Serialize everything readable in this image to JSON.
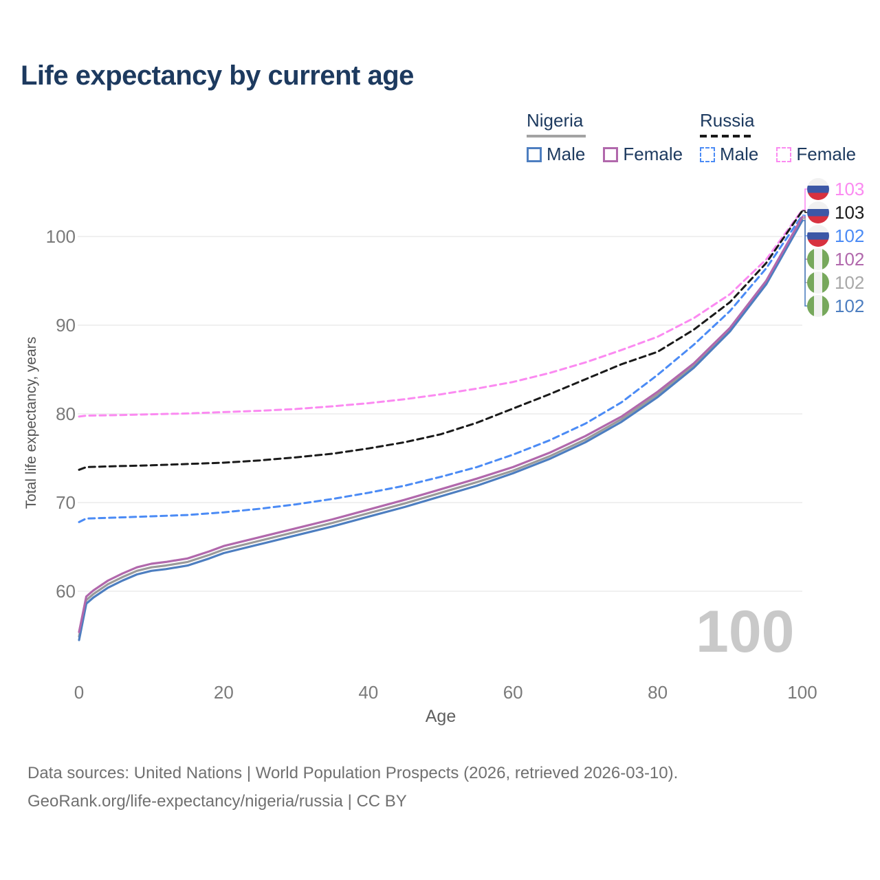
{
  "title": "Life expectancy by current age",
  "legend": {
    "groups": [
      {
        "name": "Nigeria",
        "line_style": "solid",
        "line_color": "#a3a3a3",
        "items": [
          {
            "label": "Male",
            "color": "#4d7ec0",
            "dashed": false
          },
          {
            "label": "Female",
            "color": "#b168ac",
            "dashed": false
          }
        ]
      },
      {
        "name": "Russia",
        "line_style": "dashed",
        "line_color": "#1a1a1a",
        "items": [
          {
            "label": "Male",
            "color": "#4b8bf5",
            "dashed": true
          },
          {
            "label": "Female",
            "color": "#fb8af1",
            "dashed": true
          }
        ]
      }
    ]
  },
  "chart_data": {
    "type": "line",
    "title": "Life expectancy by current age",
    "xlabel": "Age",
    "ylabel": "Total life expectancy, years",
    "xlim": [
      0,
      100
    ],
    "ylim": [
      54,
      104
    ],
    "xticks": [
      0,
      20,
      40,
      60,
      80,
      100
    ],
    "yticks": [
      60,
      70,
      80,
      90,
      100
    ],
    "grid": "horizontal",
    "legend_position": "top-right",
    "series": [
      {
        "id": "russia-female",
        "name": "Russia Female",
        "color": "#fb8af1",
        "dashed": true,
        "points": [
          [
            0,
            79.7
          ],
          [
            1,
            79.8
          ],
          [
            5,
            79.85
          ],
          [
            10,
            79.95
          ],
          [
            15,
            80.05
          ],
          [
            20,
            80.2
          ],
          [
            25,
            80.35
          ],
          [
            30,
            80.55
          ],
          [
            35,
            80.85
          ],
          [
            40,
            81.2
          ],
          [
            45,
            81.65
          ],
          [
            50,
            82.2
          ],
          [
            55,
            82.85
          ],
          [
            60,
            83.6
          ],
          [
            65,
            84.6
          ],
          [
            70,
            85.8
          ],
          [
            75,
            87.2
          ],
          [
            80,
            88.7
          ],
          [
            85,
            90.8
          ],
          [
            90,
            93.5
          ],
          [
            95,
            97.4
          ],
          [
            100,
            103.0
          ]
        ]
      },
      {
        "id": "russia-total",
        "name": "Russia Total",
        "color": "#1a1a1a",
        "dashed": true,
        "points": [
          [
            0,
            73.7
          ],
          [
            1,
            74.0
          ],
          [
            5,
            74.1
          ],
          [
            10,
            74.2
          ],
          [
            15,
            74.35
          ],
          [
            20,
            74.5
          ],
          [
            25,
            74.75
          ],
          [
            30,
            75.1
          ],
          [
            35,
            75.5
          ],
          [
            40,
            76.1
          ],
          [
            45,
            76.8
          ],
          [
            50,
            77.7
          ],
          [
            55,
            79.0
          ],
          [
            60,
            80.6
          ],
          [
            65,
            82.2
          ],
          [
            70,
            83.9
          ],
          [
            75,
            85.6
          ],
          [
            80,
            87.0
          ],
          [
            85,
            89.5
          ],
          [
            90,
            92.6
          ],
          [
            95,
            97.0
          ],
          [
            100,
            102.9
          ]
        ]
      },
      {
        "id": "russia-male",
        "name": "Russia Male",
        "color": "#4b8bf5",
        "dashed": true,
        "points": [
          [
            0,
            67.8
          ],
          [
            1,
            68.2
          ],
          [
            5,
            68.3
          ],
          [
            10,
            68.45
          ],
          [
            15,
            68.6
          ],
          [
            20,
            68.9
          ],
          [
            25,
            69.3
          ],
          [
            30,
            69.8
          ],
          [
            35,
            70.4
          ],
          [
            40,
            71.1
          ],
          [
            45,
            71.9
          ],
          [
            50,
            72.9
          ],
          [
            55,
            74.0
          ],
          [
            60,
            75.4
          ],
          [
            65,
            77.0
          ],
          [
            70,
            78.9
          ],
          [
            75,
            81.3
          ],
          [
            80,
            84.4
          ],
          [
            85,
            87.8
          ],
          [
            90,
            91.6
          ],
          [
            95,
            96.4
          ],
          [
            100,
            102.4
          ]
        ]
      },
      {
        "id": "nigeria-total",
        "name": "Nigeria Total",
        "color": "#9a9a9a",
        "dashed": false,
        "points": [
          [
            0,
            54.9
          ],
          [
            1,
            59.0
          ],
          [
            2,
            59.7
          ],
          [
            4,
            60.8
          ],
          [
            6,
            61.6
          ],
          [
            8,
            62.3
          ],
          [
            10,
            62.7
          ],
          [
            12,
            62.9
          ],
          [
            15,
            63.3
          ],
          [
            18,
            64.1
          ],
          [
            20,
            64.7
          ],
          [
            25,
            65.7
          ],
          [
            30,
            66.7
          ],
          [
            35,
            67.7
          ],
          [
            40,
            68.8
          ],
          [
            45,
            69.9
          ],
          [
            50,
            71.1
          ],
          [
            55,
            72.3
          ],
          [
            60,
            73.6
          ],
          [
            65,
            75.2
          ],
          [
            70,
            77.1
          ],
          [
            75,
            79.4
          ],
          [
            80,
            82.2
          ],
          [
            85,
            85.5
          ],
          [
            90,
            89.5
          ],
          [
            95,
            94.8
          ],
          [
            100,
            102.0
          ]
        ]
      },
      {
        "id": "nigeria-male",
        "name": "Nigeria Male",
        "color": "#4d7ec0",
        "dashed": false,
        "points": [
          [
            0,
            54.5
          ],
          [
            1,
            58.6
          ],
          [
            2,
            59.3
          ],
          [
            4,
            60.4
          ],
          [
            6,
            61.2
          ],
          [
            8,
            61.9
          ],
          [
            10,
            62.3
          ],
          [
            12,
            62.5
          ],
          [
            15,
            62.9
          ],
          [
            18,
            63.7
          ],
          [
            20,
            64.3
          ],
          [
            25,
            65.3
          ],
          [
            30,
            66.3
          ],
          [
            35,
            67.3
          ],
          [
            40,
            68.4
          ],
          [
            45,
            69.5
          ],
          [
            50,
            70.7
          ],
          [
            55,
            71.9
          ],
          [
            60,
            73.3
          ],
          [
            65,
            74.9
          ],
          [
            70,
            76.8
          ],
          [
            75,
            79.1
          ],
          [
            80,
            81.9
          ],
          [
            85,
            85.2
          ],
          [
            90,
            89.3
          ],
          [
            95,
            94.6
          ],
          [
            100,
            101.8
          ]
        ]
      },
      {
        "id": "nigeria-female",
        "name": "Nigeria Female",
        "color": "#b168ac",
        "dashed": false,
        "points": [
          [
            0,
            55.4
          ],
          [
            1,
            59.4
          ],
          [
            2,
            60.1
          ],
          [
            4,
            61.2
          ],
          [
            6,
            62.0
          ],
          [
            8,
            62.7
          ],
          [
            10,
            63.1
          ],
          [
            12,
            63.3
          ],
          [
            15,
            63.7
          ],
          [
            18,
            64.5
          ],
          [
            20,
            65.1
          ],
          [
            25,
            66.1
          ],
          [
            30,
            67.1
          ],
          [
            35,
            68.1
          ],
          [
            40,
            69.2
          ],
          [
            45,
            70.3
          ],
          [
            50,
            71.5
          ],
          [
            55,
            72.7
          ],
          [
            60,
            74.0
          ],
          [
            65,
            75.6
          ],
          [
            70,
            77.5
          ],
          [
            75,
            79.7
          ],
          [
            80,
            82.5
          ],
          [
            85,
            85.7
          ],
          [
            90,
            89.7
          ],
          [
            95,
            95.0
          ],
          [
            100,
            102.2
          ]
        ]
      }
    ]
  },
  "end_labels": [
    {
      "series": "russia-female",
      "flag": "russia",
      "value": "103",
      "color": "#fb8af1"
    },
    {
      "series": "russia-total",
      "flag": "russia",
      "value": "103",
      "color": "#1a1a1a"
    },
    {
      "series": "russia-male",
      "flag": "russia",
      "value": "102",
      "color": "#4b8bf5"
    },
    {
      "series": "nigeria-female",
      "flag": "nigeria",
      "value": "102",
      "color": "#b168ac"
    },
    {
      "series": "nigeria-total",
      "flag": "nigeria",
      "value": "102",
      "color": "#a8a8a8"
    },
    {
      "series": "nigeria-male",
      "flag": "nigeria",
      "value": "102",
      "color": "#4d7ec0"
    }
  ],
  "watermark_age": "100",
  "footer": {
    "line1": "Data sources: United Nations | World Population Prospects (2026, retrieved 2026-03-10).",
    "line2": "GeoRank.org/life-expectancy/nigeria/russia | CC BY"
  }
}
